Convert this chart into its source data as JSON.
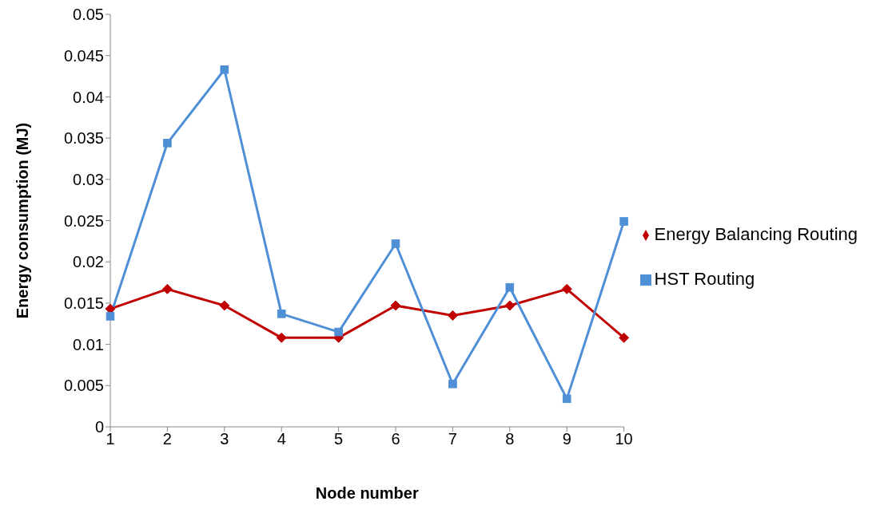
{
  "chart_data": {
    "type": "line",
    "xlabel": "Node number",
    "ylabel": "Energy consumption (MJ)",
    "categories": [
      "1",
      "2",
      "3",
      "4",
      "5",
      "6",
      "7",
      "8",
      "9",
      "10"
    ],
    "series": [
      {
        "name": "Energy Balancing Routing",
        "color": "#c00000",
        "marker": "diamond",
        "values": [
          0.0143,
          0.0167,
          0.0147,
          0.0108,
          0.0108,
          0.0147,
          0.0135,
          0.0147,
          0.0167,
          0.0108
        ]
      },
      {
        "name": "HST Routing",
        "color": "#4f8fd6",
        "marker": "square",
        "values": [
          0.0134,
          0.0344,
          0.0433,
          0.0137,
          0.0115,
          0.0222,
          0.0052,
          0.0169,
          0.0034,
          0.0249
        ]
      }
    ],
    "ylim": [
      0,
      0.05
    ],
    "yticks": [
      0,
      0.005,
      0.01,
      0.015,
      0.02,
      0.025,
      0.03,
      0.035,
      0.04,
      0.045,
      0.05
    ],
    "grid": false,
    "legend": "right",
    "line_style": "solid"
  }
}
